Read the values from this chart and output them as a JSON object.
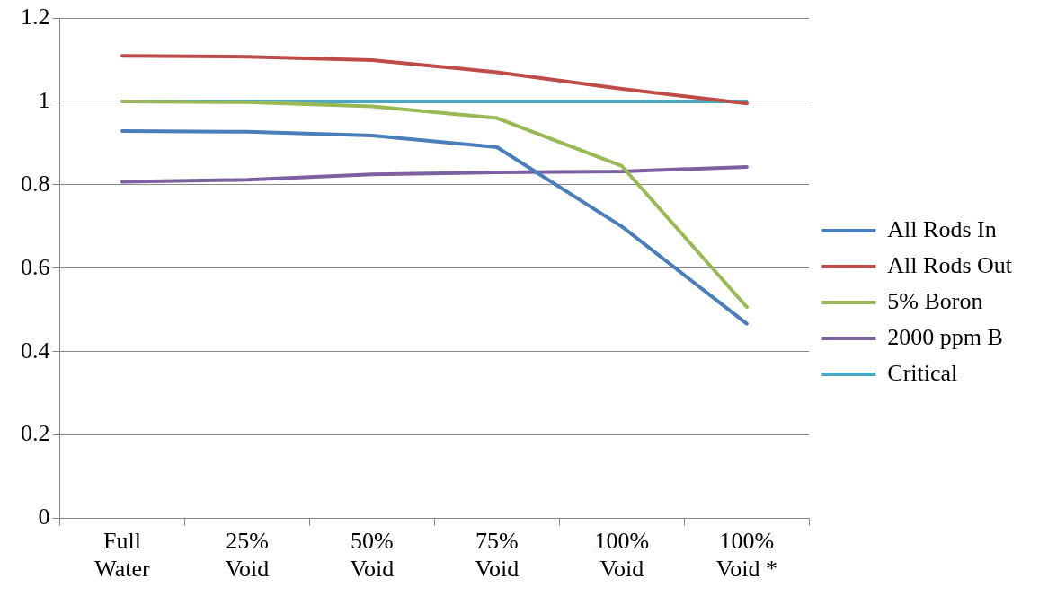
{
  "chart_data": {
    "type": "line",
    "categories": [
      "Full Water",
      "25% Void",
      "50% Void",
      "75% Void",
      "100% Void",
      "100% Void *"
    ],
    "series": [
      {
        "name": "All Rods In",
        "color": "#4a7ebb",
        "values": [
          0.929,
          0.927,
          0.918,
          0.89,
          0.7,
          0.467
        ]
      },
      {
        "name": "All Rods Out",
        "color": "#be4b48",
        "values": [
          1.109,
          1.107,
          1.099,
          1.07,
          1.03,
          0.995
        ]
      },
      {
        "name": "5% Boron",
        "color": "#98b954",
        "values": [
          1.0,
          0.998,
          0.988,
          0.96,
          0.845,
          0.507
        ]
      },
      {
        "name": "2000 ppm B",
        "color": "#7d60a0",
        "values": [
          0.807,
          0.812,
          0.825,
          0.83,
          0.832,
          0.843
        ]
      },
      {
        "name": "Critical",
        "color": "#46aac5",
        "values": [
          1,
          1,
          1,
          1,
          1,
          1
        ]
      }
    ],
    "ylim": [
      0,
      1.2
    ],
    "yticks": [
      0,
      0.2,
      0.4,
      0.6,
      0.8,
      1,
      1.2
    ],
    "grid": "y",
    "legend": "right",
    "marker": "none",
    "line_style": "solid"
  }
}
